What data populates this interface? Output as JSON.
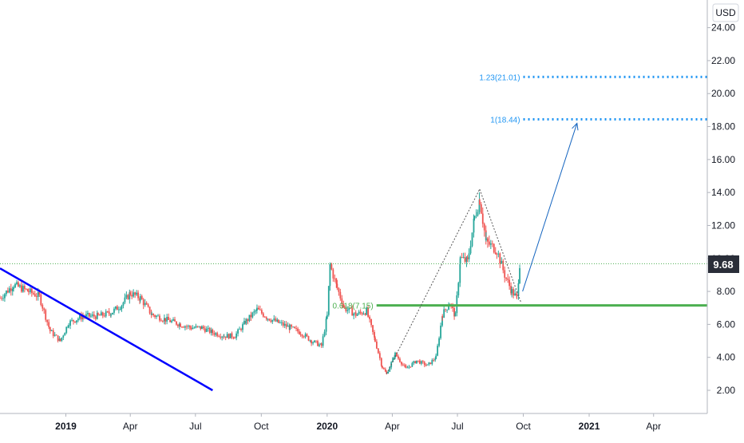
{
  "chart_data": {
    "type": "candlestick",
    "currency": "USD",
    "last_price": "9.68",
    "y_ticks": [
      "24.00",
      "22.00",
      "20.00",
      "18.00",
      "16.00",
      "14.00",
      "12.00",
      "10.00",
      "8.00",
      "6.00",
      "4.00",
      "2.00"
    ],
    "y_tick_values": [
      24,
      22,
      20,
      18,
      16,
      14,
      12,
      10,
      8,
      6,
      4,
      2
    ],
    "x_ticks": [
      "2019",
      "Apr",
      "Jul",
      "Oct",
      "2020",
      "Apr",
      "Jul",
      "Oct",
      "2021",
      "Apr"
    ],
    "x_tick_dates": [
      "2019-01-01",
      "2019-04-01",
      "2019-07-01",
      "2019-10-01",
      "2020-01-01",
      "2020-04-01",
      "2020-07-01",
      "2020-10-01",
      "2021-01-01",
      "2021-04-01"
    ],
    "bold_x_ticks": [
      "2019",
      "2020",
      "2021"
    ],
    "ylim": [
      0.5,
      25.5
    ],
    "xlim": [
      "2018-10-01",
      "2021-06-15"
    ],
    "close_series": [
      {
        "date": "2018-10-01",
        "value": 7.6
      },
      {
        "date": "2018-10-20",
        "value": 8.4
      },
      {
        "date": "2018-11-10",
        "value": 8.0
      },
      {
        "date": "2018-11-25",
        "value": 7.7
      },
      {
        "date": "2018-12-10",
        "value": 5.6
      },
      {
        "date": "2018-12-24",
        "value": 5.0
      },
      {
        "date": "2019-01-05",
        "value": 6.1
      },
      {
        "date": "2019-01-25",
        "value": 6.5
      },
      {
        "date": "2019-02-15",
        "value": 6.5
      },
      {
        "date": "2019-03-05",
        "value": 6.7
      },
      {
        "date": "2019-03-20",
        "value": 7.2
      },
      {
        "date": "2019-04-01",
        "value": 7.9
      },
      {
        "date": "2019-04-15",
        "value": 7.6
      },
      {
        "date": "2019-05-01",
        "value": 6.6
      },
      {
        "date": "2019-05-20",
        "value": 6.3
      },
      {
        "date": "2019-06-10",
        "value": 6.0
      },
      {
        "date": "2019-06-25",
        "value": 5.8
      },
      {
        "date": "2019-07-10",
        "value": 5.8
      },
      {
        "date": "2019-07-25",
        "value": 5.5
      },
      {
        "date": "2019-08-10",
        "value": 5.3
      },
      {
        "date": "2019-08-25",
        "value": 5.3
      },
      {
        "date": "2019-09-10",
        "value": 6.2
      },
      {
        "date": "2019-09-25",
        "value": 6.9
      },
      {
        "date": "2019-10-10",
        "value": 6.4
      },
      {
        "date": "2019-10-25",
        "value": 6.1
      },
      {
        "date": "2019-11-10",
        "value": 5.8
      },
      {
        "date": "2019-11-25",
        "value": 5.5
      },
      {
        "date": "2019-12-10",
        "value": 5.0
      },
      {
        "date": "2019-12-24",
        "value": 4.7
      },
      {
        "date": "2020-01-01",
        "value": 6.5
      },
      {
        "date": "2020-01-05",
        "value": 9.6
      },
      {
        "date": "2020-01-15",
        "value": 8.2
      },
      {
        "date": "2020-01-25",
        "value": 7.0
      },
      {
        "date": "2020-02-10",
        "value": 6.6
      },
      {
        "date": "2020-02-25",
        "value": 6.8
      },
      {
        "date": "2020-03-08",
        "value": 5.0
      },
      {
        "date": "2020-03-18",
        "value": 3.4
      },
      {
        "date": "2020-03-24",
        "value": 3.0
      },
      {
        "date": "2020-04-05",
        "value": 4.2
      },
      {
        "date": "2020-04-20",
        "value": 3.3
      },
      {
        "date": "2020-05-05",
        "value": 3.8
      },
      {
        "date": "2020-05-20",
        "value": 3.5
      },
      {
        "date": "2020-06-01",
        "value": 4.0
      },
      {
        "date": "2020-06-10",
        "value": 6.6
      },
      {
        "date": "2020-06-20",
        "value": 7.3
      },
      {
        "date": "2020-06-28",
        "value": 6.5
      },
      {
        "date": "2020-07-05",
        "value": 10.0
      },
      {
        "date": "2020-07-15",
        "value": 9.8
      },
      {
        "date": "2020-07-25",
        "value": 12.5
      },
      {
        "date": "2020-08-01",
        "value": 13.6
      },
      {
        "date": "2020-08-10",
        "value": 11.0
      },
      {
        "date": "2020-08-25",
        "value": 10.5
      },
      {
        "date": "2020-09-05",
        "value": 9.0
      },
      {
        "date": "2020-09-15",
        "value": 8.0
      },
      {
        "date": "2020-09-22",
        "value": 7.6
      },
      {
        "date": "2020-09-26",
        "value": 9.68
      }
    ],
    "annotations": [
      {
        "type": "hline",
        "label": "1.23(21.01)",
        "value": 21.01,
        "color": "#2196f3",
        "style": "dotted",
        "from": "2020-10-01"
      },
      {
        "type": "hline",
        "label": "1(18.44)",
        "value": 18.44,
        "color": "#2196f3",
        "style": "dotted",
        "from": "2020-10-01"
      },
      {
        "type": "hline",
        "label": "0.618(7.15)",
        "value": 7.15,
        "color": "#4caf50",
        "style": "solid",
        "from": "2020-03-10"
      },
      {
        "type": "hline",
        "value": 9.68,
        "color": "#4caf50",
        "style": "dotted"
      },
      {
        "type": "trendline",
        "color": "#0000ff",
        "from": {
          "date": "2018-10-01",
          "value": 9.4
        },
        "to": {
          "date": "2019-07-25",
          "value": 2.0
        }
      },
      {
        "type": "trendline",
        "color": "#555555",
        "style": "dotted",
        "from": {
          "date": "2020-03-24",
          "value": 3.0
        },
        "to": {
          "date": "2020-08-01",
          "value": 14.2
        }
      },
      {
        "type": "trendline",
        "color": "#555555",
        "style": "dotted",
        "from": {
          "date": "2020-08-01",
          "value": 14.2
        },
        "to": {
          "date": "2020-09-28",
          "value": 7.3
        }
      },
      {
        "type": "arrow",
        "color": "#1565c0",
        "from": {
          "date": "2020-09-30",
          "value": 8.0
        },
        "to": {
          "date": "2020-12-15",
          "value": 18.2
        }
      }
    ],
    "colors": {
      "up": "#26a69a",
      "down": "#ef5350",
      "price_badge": "#2a2e39",
      "price_line": "#4caf50"
    }
  }
}
